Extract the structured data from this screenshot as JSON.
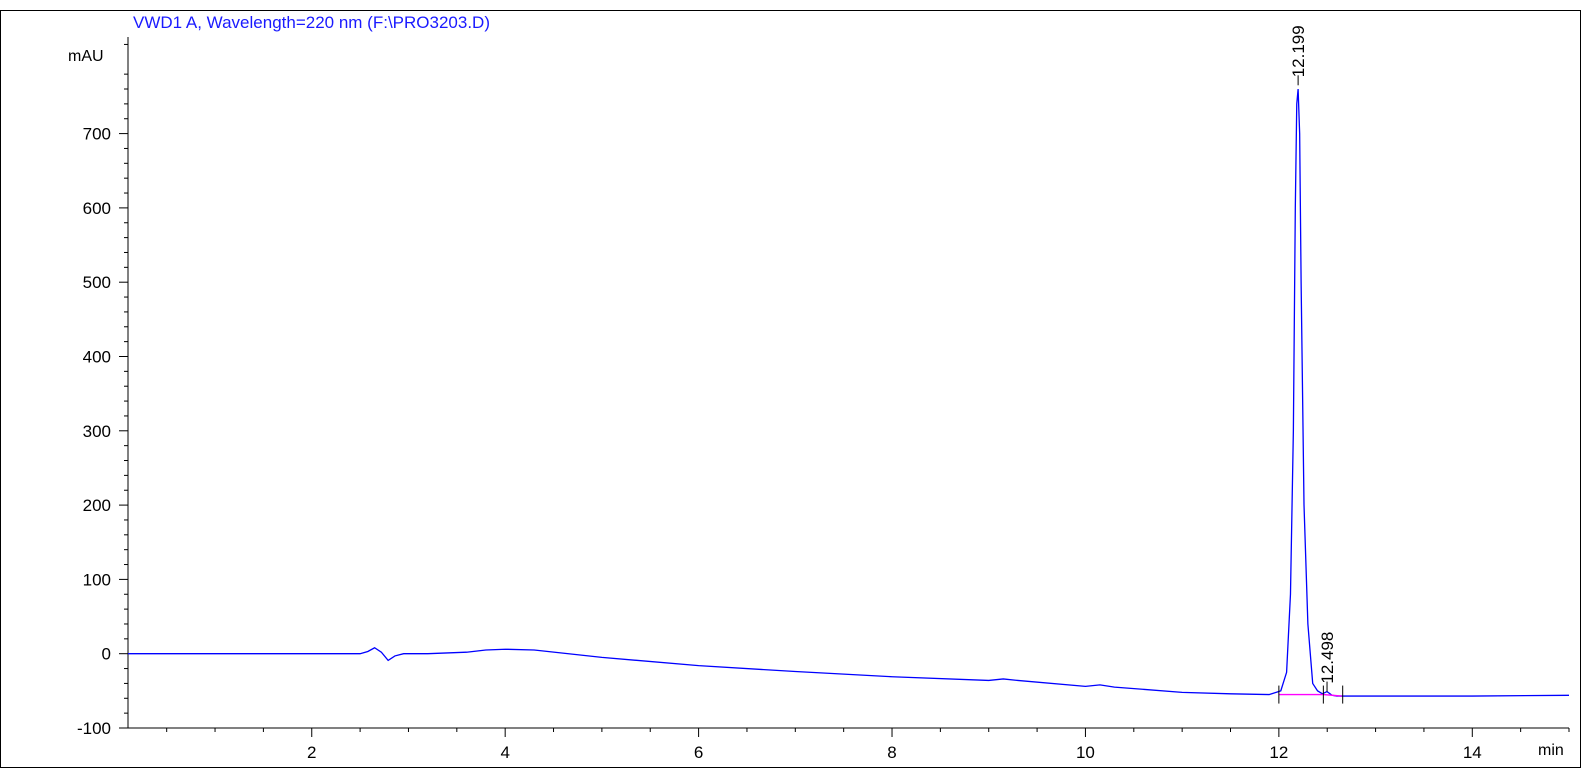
{
  "chart_data": {
    "type": "line",
    "title": "VWD1 A, Wavelength=220 nm (F:\\PRO3203.D)",
    "xlabel": "min",
    "ylabel": "mAU",
    "xlim": [
      0.1,
      15.0
    ],
    "ylim": [
      -100,
      830
    ],
    "x_ticks": [
      2,
      4,
      6,
      8,
      10,
      12,
      14
    ],
    "y_ticks": [
      -100,
      0,
      100,
      200,
      300,
      400,
      500,
      600,
      700
    ],
    "grid": false,
    "series": [
      {
        "x": [
          0.1,
          2.0,
          2.5,
          2.58,
          2.65,
          2.72,
          2.79,
          2.86,
          2.95,
          3.2,
          3.6,
          3.8,
          4.0,
          4.3,
          5.0,
          6.0,
          7.0,
          8.0,
          9.0,
          9.15,
          9.3,
          10.0,
          10.15,
          10.3,
          11.0,
          11.5,
          11.9,
          12.02,
          12.08,
          12.12,
          12.15,
          12.17,
          12.185,
          12.199,
          12.215,
          12.23,
          12.26,
          12.3,
          12.35,
          12.4,
          12.45,
          12.498,
          12.55,
          12.6,
          13.0,
          14.0,
          15.0
        ],
        "y": [
          0,
          0,
          0,
          3,
          8,
          2,
          -9,
          -3,
          0,
          0,
          2,
          5,
          6,
          5,
          -5,
          -16,
          -24,
          -31,
          -36,
          -34,
          -36,
          -44,
          -42,
          -45,
          -52,
          -54,
          -55,
          -50,
          -25,
          80,
          300,
          600,
          740,
          760,
          700,
          500,
          200,
          40,
          -40,
          -50,
          -54,
          -51,
          -56,
          -57,
          -57,
          -57,
          -56
        ]
      },
      {
        "name": "baseline",
        "x": [
          12.0,
          12.46,
          12.56,
          12.65
        ],
        "y": [
          -55,
          -55,
          -56,
          -57
        ]
      }
    ],
    "peaks": [
      {
        "rt": "12.199",
        "x": 12.199,
        "y": 765
      },
      {
        "rt": "12.498",
        "x": 12.498,
        "y": -51
      }
    ]
  }
}
